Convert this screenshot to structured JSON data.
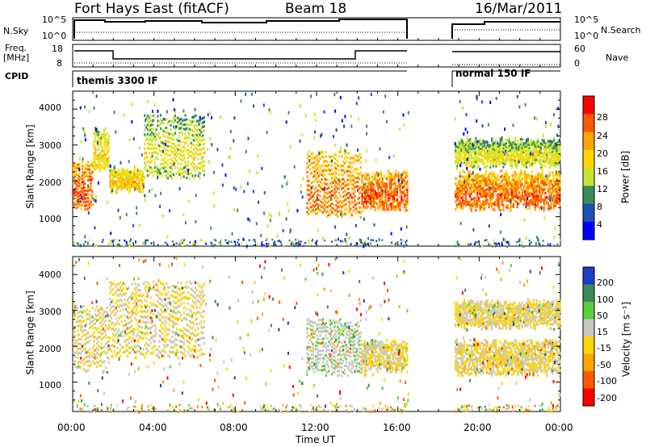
{
  "header": {
    "title": "Fort Hays East (fitACF)",
    "beam": "Beam 18",
    "date": "16/Mar/2011"
  },
  "top_panels": {
    "nsky_label": "N.Sky",
    "nsky_tick_hi": "10^5",
    "nsky_tick_lo": "10^0",
    "nsearch_label": "N.Search",
    "nsearch_tick_hi": "10^5",
    "nsearch_tick_lo": "10^0",
    "freq_label": "Freq.",
    "freq_unit": "[MHz]",
    "freq_tick_hi": "18",
    "freq_tick_lo": "8",
    "nave_label": "Nave",
    "nave_tick_hi": "60",
    "nave_tick_lo": "0",
    "cpid_label": "CPID",
    "cpid_segment_1": "themis 3300 IF",
    "cpid_segment_2": "normal 150 IF"
  },
  "power_panel": {
    "ylabel": "Slant Range [km]",
    "yticks": [
      "4000",
      "3000",
      "2000",
      "1000"
    ],
    "colorbar_label": "Power [dB]",
    "colorbar_ticks": [
      "28",
      "24",
      "20",
      "16",
      "12",
      "8",
      "4"
    ],
    "colorbar_colors": [
      "#ff0000",
      "#ff5a00",
      "#ffa500",
      "#ffd700",
      "#c8e630",
      "#3c8c5a",
      "#1e50b4",
      "#0000ff"
    ]
  },
  "velocity_panel": {
    "ylabel": "Slant Range [km]",
    "yticks": [
      "4000",
      "3000",
      "2000",
      "1000"
    ],
    "colorbar_label": "Velocity [m s⁻¹]",
    "colorbar_ticks": [
      "200",
      "100",
      "50",
      "15",
      "-15",
      "-50",
      "-100",
      "-200"
    ],
    "colorbar_colors": [
      "#1e3cc8",
      "#3c8c5a",
      "#5acd3c",
      "#c8c8c0",
      "#ffd700",
      "#ffa500",
      "#ff5a00",
      "#ff0000"
    ]
  },
  "xaxis": {
    "label": "Time UT",
    "ticks": [
      "00:00",
      "04:00",
      "08:00",
      "12:00",
      "16:00",
      "20:00",
      "00:00"
    ]
  },
  "chart_data": [
    {
      "type": "heatmap",
      "title": "Fort Hays East (fitACF)",
      "subtitle": "Beam 18",
      "ylabel": "Slant Range [km]",
      "xlabel": "Time UT",
      "x_range": [
        "00:00",
        "24:00"
      ],
      "ylim": [
        180,
        4500
      ],
      "colorbar": {
        "label": "Power [dB]",
        "range": [
          2,
          30
        ]
      },
      "echo_bands": [
        {
          "t_start": 0.0,
          "t_end": 1.0,
          "range_low": 1300,
          "range_high": 2600,
          "value": 22
        },
        {
          "t_start": 1.0,
          "t_end": 1.8,
          "range_low": 2400,
          "range_high": 3500,
          "value": 14
        },
        {
          "t_start": 1.8,
          "t_end": 3.5,
          "range_low": 1800,
          "range_high": 2400,
          "value": 16
        },
        {
          "t_start": 3.5,
          "t_end": 6.5,
          "range_low": 2200,
          "range_high": 3900,
          "value": 12
        },
        {
          "t_start": 11.5,
          "t_end": 14.2,
          "range_low": 1100,
          "range_high": 2900,
          "value": 20
        },
        {
          "t_start": 14.2,
          "t_end": 16.5,
          "range_low": 1300,
          "range_high": 2300,
          "value": 22
        },
        {
          "t_start": 18.8,
          "t_end": 24.0,
          "range_low": 1300,
          "range_high": 2300,
          "value": 21
        },
        {
          "t_start": 18.8,
          "t_end": 24.0,
          "range_low": 2500,
          "range_high": 3200,
          "value": 12
        }
      ],
      "data_gap": {
        "t_start": 16.5,
        "t_end": 18.7
      }
    },
    {
      "type": "heatmap",
      "ylabel": "Slant Range [km]",
      "xlabel": "Time UT",
      "x_range": [
        "00:00",
        "24:00"
      ],
      "ylim": [
        180,
        4500
      ],
      "colorbar": {
        "label": "Velocity [m s⁻¹]",
        "range": [
          -200,
          200
        ]
      },
      "echo_bands": [
        {
          "t_start": 0.0,
          "t_end": 1.8,
          "range_low": 1400,
          "range_high": 3200,
          "value": 0
        },
        {
          "t_start": 1.8,
          "t_end": 6.5,
          "range_low": 1800,
          "range_high": 3900,
          "value": 0
        },
        {
          "t_start": 11.5,
          "t_end": 14.2,
          "range_low": 1300,
          "range_high": 2800,
          "value": 40
        },
        {
          "t_start": 14.2,
          "t_end": 16.5,
          "range_low": 1400,
          "range_high": 2200,
          "value": 0
        },
        {
          "t_start": 18.8,
          "t_end": 24.0,
          "range_low": 1300,
          "range_high": 2200,
          "value": 0
        },
        {
          "t_start": 18.8,
          "t_end": 24.0,
          "range_low": 2600,
          "range_high": 3300,
          "value": 0
        }
      ],
      "data_gap": {
        "t_start": 16.5,
        "t_end": 18.7
      }
    }
  ]
}
